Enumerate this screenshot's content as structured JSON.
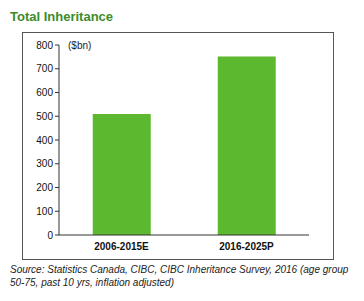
{
  "chart_data": {
    "type": "bar",
    "title": "Total Inheritance",
    "ylabel": "($bn)",
    "categories": [
      "2006-2015E",
      "2016-2025P"
    ],
    "values": [
      510,
      752
    ],
    "color": "#5cb82e",
    "ylim": [
      0,
      800
    ],
    "yticks": [
      0,
      100,
      200,
      300,
      400,
      500,
      600,
      700,
      800
    ],
    "grid": false,
    "source": "Source:  Statistics Canada, CIBC, CIBC Inheritance Survey, 2016 (age group 50-75, past 10 yrs, inflation adjusted)"
  }
}
